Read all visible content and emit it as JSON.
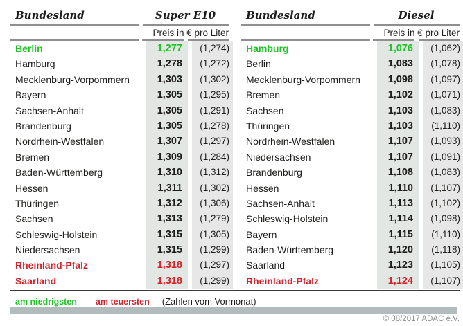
{
  "page": {
    "background": "#ffffff"
  },
  "colors": {
    "lowest_green": "#1fc327",
    "highest_red": "#d2232b",
    "price_column_bg": "#e2e7e3",
    "previous_column_bg": "#e7e7e7",
    "rule_gray": "#8f8f8f",
    "bottom_bar_gray": "#b2bcbc"
  },
  "legend": {
    "lowest_label": "am niedrigsten",
    "highest_label": "am teuersten",
    "note": "(Zahlen vom Vormonat)"
  },
  "footer": {
    "copyright": "© 08/2017 ADAC e.V."
  },
  "chart_data": [
    {
      "type": "table",
      "title": "Super E10",
      "state_header": "Bundesland",
      "fuel_header": "Super E10",
      "subheader": "Preis in € pro Liter",
      "columns": [
        "Bundesland",
        "Preis in € pro Liter (aktuell)",
        "Preis in € pro Liter (Vormonat)"
      ],
      "rows": [
        {
          "state": "Berlin",
          "price": "1,277",
          "prev": "(1,274)",
          "highlight": "lowest"
        },
        {
          "state": "Hamburg",
          "price": "1,278",
          "prev": "(1,272)"
        },
        {
          "state": "Mecklenburg-Vorpommern",
          "price": "1,303",
          "prev": "(1,302)"
        },
        {
          "state": "Bayern",
          "price": "1,305",
          "prev": "(1,295)"
        },
        {
          "state": "Sachsen-Anhalt",
          "price": "1,305",
          "prev": "(1,291)"
        },
        {
          "state": "Brandenburg",
          "price": "1,305",
          "prev": "(1,278)"
        },
        {
          "state": "Nordrhein-Westfalen",
          "price": "1,307",
          "prev": "(1,297)"
        },
        {
          "state": "Bremen",
          "price": "1,309",
          "prev": "(1,284)"
        },
        {
          "state": "Baden-Württemberg",
          "price": "1,310",
          "prev": "(1,312)"
        },
        {
          "state": "Hessen",
          "price": "1,311",
          "prev": "(1,302)"
        },
        {
          "state": "Thüringen",
          "price": "1,312",
          "prev": "(1,306)"
        },
        {
          "state": "Sachsen",
          "price": "1,313",
          "prev": "(1,279)"
        },
        {
          "state": "Schleswig-Holstein",
          "price": "1,315",
          "prev": "(1,305)"
        },
        {
          "state": "Niedersachsen",
          "price": "1,315",
          "prev": "(1,299)"
        },
        {
          "state": "Rheinland-Pfalz",
          "price": "1,318",
          "prev": "(1,297)",
          "highlight": "highest"
        },
        {
          "state": "Saarland",
          "price": "1,318",
          "prev": "(1,299)",
          "highlight": "highest"
        }
      ]
    },
    {
      "type": "table",
      "title": "Diesel",
      "state_header": "Bundesland",
      "fuel_header": "Diesel",
      "subheader": "Preis in € pro Liter",
      "columns": [
        "Bundesland",
        "Preis in € pro Liter (aktuell)",
        "Preis in € pro Liter (Vormonat)"
      ],
      "rows": [
        {
          "state": "Hamburg",
          "price": "1,076",
          "prev": "(1,062)",
          "highlight": "lowest"
        },
        {
          "state": "Berlin",
          "price": "1,083",
          "prev": "(1,078)"
        },
        {
          "state": "Mecklenburg-Vorpommern",
          "price": "1,098",
          "prev": "(1,097)"
        },
        {
          "state": "Bremen",
          "price": "1,102",
          "prev": "(1,071)"
        },
        {
          "state": "Sachsen",
          "price": "1,103",
          "prev": "(1,083)"
        },
        {
          "state": "Thüringen",
          "price": "1,103",
          "prev": "(1,110)"
        },
        {
          "state": "Nordrhein-Westfalen",
          "price": "1,107",
          "prev": "(1,093)"
        },
        {
          "state": "Niedersachsen",
          "price": "1,107",
          "prev": "(1,091)"
        },
        {
          "state": "Brandenburg",
          "price": "1,108",
          "prev": "(1,083)"
        },
        {
          "state": "Hessen",
          "price": "1,110",
          "prev": "(1,107)"
        },
        {
          "state": "Sachsen-Anhalt",
          "price": "1,113",
          "prev": "(1,102)"
        },
        {
          "state": "Schleswig-Holstein",
          "price": "1,114",
          "prev": "(1,098)"
        },
        {
          "state": "Bayern",
          "price": "1,115",
          "prev": "(1,110)"
        },
        {
          "state": "Baden-Württemberg",
          "price": "1,120",
          "prev": "(1,118)"
        },
        {
          "state": "Saarland",
          "price": "1,123",
          "prev": "(1,105)"
        },
        {
          "state": "Rheinland-Pfalz",
          "price": "1,124",
          "prev": "(1,107)",
          "highlight": "highest"
        }
      ]
    }
  ]
}
